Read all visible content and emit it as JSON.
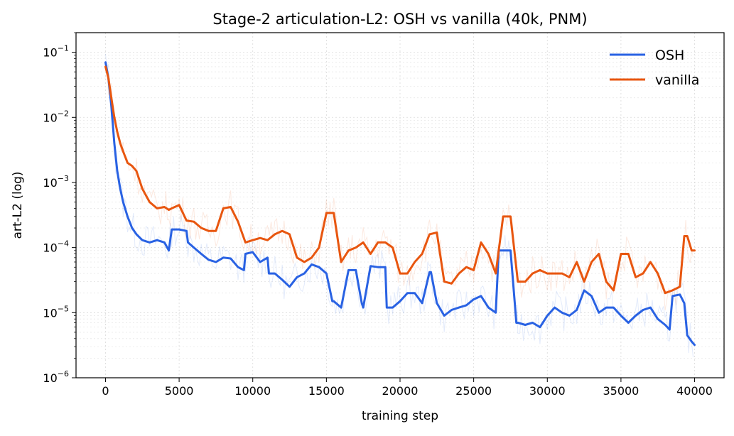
{
  "chart_data": {
    "type": "line",
    "title": "Stage-2 articulation-L2: OSH vs vanilla (40k, PNM)",
    "xlabel": "training step",
    "ylabel": "art-L2 (log)",
    "xlim": [
      -2000,
      42000
    ],
    "ylim": [
      1e-06,
      0.2
    ],
    "yscale": "log",
    "grid": true,
    "legend_position": "top-right",
    "x_ticks": [
      0,
      5000,
      10000,
      15000,
      20000,
      25000,
      30000,
      35000,
      40000
    ],
    "x_tick_labels": [
      "0",
      "5000",
      "10000",
      "15000",
      "20000",
      "25000",
      "30000",
      "35000",
      "40000"
    ],
    "y_ticks": [
      {
        "value": 1e-06,
        "base": "10",
        "exp": "−6"
      },
      {
        "value": 1e-05,
        "base": "10",
        "exp": "−5"
      },
      {
        "value": 0.0001,
        "base": "10",
        "exp": "−4"
      },
      {
        "value": 0.001,
        "base": "10",
        "exp": "−3"
      },
      {
        "value": 0.01,
        "base": "10",
        "exp": "−2"
      },
      {
        "value": 0.1,
        "base": "10",
        "exp": "−1"
      }
    ],
    "series": [
      {
        "name": "OSH",
        "color": "#2962e3",
        "x": [
          0,
          200,
          400,
          600,
          800,
          1000,
          1200,
          1500,
          1800,
          2100,
          2500,
          3000,
          3500,
          4000,
          4300,
          4500,
          5000,
          5500,
          5600,
          6000,
          6500,
          7000,
          7500,
          8000,
          8500,
          9000,
          9400,
          9500,
          10000,
          10500,
          11000,
          11100,
          11500,
          12000,
          12500,
          13000,
          13500,
          14000,
          14500,
          15000,
          15400,
          15500,
          16000,
          16500,
          17000,
          17400,
          17500,
          18000,
          18500,
          19000,
          19100,
          19500,
          20000,
          20500,
          21000,
          21500,
          22000,
          22100,
          22500,
          23000,
          23500,
          24000,
          24500,
          25000,
          25500,
          26000,
          26500,
          26700,
          27000,
          27500,
          27900,
          28000,
          28500,
          29000,
          29500,
          30000,
          30500,
          31000,
          31500,
          32000,
          32500,
          33000,
          33500,
          34000,
          34500,
          35000,
          35500,
          36000,
          36500,
          37000,
          37500,
          38000,
          38300,
          38500,
          39000,
          39300,
          39500,
          39800,
          40000
        ],
        "y": [
          0.07,
          0.04,
          0.015,
          0.004,
          0.0015,
          0.0008,
          0.0005,
          0.0003,
          0.0002,
          0.00016,
          0.00013,
          0.00012,
          0.00013,
          0.00012,
          9e-05,
          0.00019,
          0.00019,
          0.00018,
          0.00012,
          0.0001,
          8e-05,
          6.5e-05,
          6e-05,
          7e-05,
          6.8e-05,
          5e-05,
          4.5e-05,
          8e-05,
          8.5e-05,
          6e-05,
          7e-05,
          4e-05,
          4e-05,
          3.2e-05,
          2.5e-05,
          3.5e-05,
          4e-05,
          5.5e-05,
          5e-05,
          4e-05,
          1.5e-05,
          1.5e-05,
          1.2e-05,
          4.5e-05,
          4.5e-05,
          1.4e-05,
          1.2e-05,
          5.2e-05,
          5e-05,
          5e-05,
          1.2e-05,
          1.2e-05,
          1.5e-05,
          2e-05,
          2e-05,
          1.4e-05,
          4.2e-05,
          4.2e-05,
          1.4e-05,
          9e-06,
          1.1e-05,
          1.2e-05,
          1.3e-05,
          1.6e-05,
          1.8e-05,
          1.2e-05,
          1e-05,
          9e-05,
          9e-05,
          9e-05,
          7e-06,
          7e-06,
          6.5e-06,
          7e-06,
          6e-06,
          9e-06,
          1.2e-05,
          1e-05,
          9e-06,
          1.1e-05,
          2.2e-05,
          1.8e-05,
          1e-05,
          1.2e-05,
          1.2e-05,
          9e-06,
          7e-06,
          9e-06,
          1.1e-05,
          1.2e-05,
          8e-06,
          6.5e-06,
          5.5e-06,
          1.8e-05,
          1.9e-05,
          1.4e-05,
          4.5e-06,
          3.6e-06,
          3.2e-06
        ]
      },
      {
        "name": "vanilla",
        "color": "#e8560f",
        "x": [
          0,
          200,
          400,
          600,
          800,
          1000,
          1200,
          1500,
          1800,
          2100,
          2500,
          3000,
          3500,
          4000,
          4300,
          4500,
          5000,
          5500,
          6000,
          6500,
          7000,
          7500,
          8000,
          8500,
          9000,
          9500,
          10000,
          10500,
          11000,
          11500,
          12000,
          12500,
          13000,
          13500,
          14000,
          14500,
          15000,
          15500,
          16000,
          16500,
          17000,
          17500,
          18000,
          18500,
          19000,
          19500,
          20000,
          20500,
          21000,
          21500,
          22000,
          22500,
          23000,
          23500,
          24000,
          24500,
          25000,
          25500,
          26000,
          26500,
          27000,
          27500,
          28000,
          28500,
          29000,
          29500,
          30000,
          30500,
          31000,
          31500,
          32000,
          32500,
          33000,
          33500,
          34000,
          34500,
          35000,
          35500,
          36000,
          36500,
          37000,
          37500,
          38000,
          38500,
          39000,
          39300,
          39500,
          39800,
          40000
        ],
        "y": [
          0.06,
          0.04,
          0.02,
          0.01,
          0.006,
          0.004,
          0.003,
          0.002,
          0.0018,
          0.0015,
          0.0008,
          0.0005,
          0.0004,
          0.00042,
          0.00038,
          0.0004,
          0.00045,
          0.00026,
          0.00025,
          0.0002,
          0.00018,
          0.00018,
          0.0004,
          0.00042,
          0.00025,
          0.00012,
          0.00013,
          0.00014,
          0.00013,
          0.00016,
          0.00018,
          0.00016,
          7e-05,
          6e-05,
          7e-05,
          0.0001,
          0.00034,
          0.00034,
          6e-05,
          9e-05,
          0.0001,
          0.00012,
          8e-05,
          0.00012,
          0.00012,
          0.0001,
          4e-05,
          4e-05,
          6e-05,
          8e-05,
          0.00016,
          0.00017,
          3e-05,
          2.8e-05,
          4e-05,
          5e-05,
          4.5e-05,
          0.00012,
          8e-05,
          4e-05,
          0.0003,
          0.0003,
          3e-05,
          3e-05,
          4e-05,
          4.5e-05,
          4e-05,
          4e-05,
          4e-05,
          3.5e-05,
          6e-05,
          3e-05,
          6e-05,
          8e-05,
          3e-05,
          2.2e-05,
          8e-05,
          8e-05,
          3.5e-05,
          4e-05,
          6e-05,
          4e-05,
          2e-05,
          2.2e-05,
          2.5e-05,
          0.00015,
          0.00015,
          9e-05,
          9e-05
        ]
      }
    ]
  }
}
